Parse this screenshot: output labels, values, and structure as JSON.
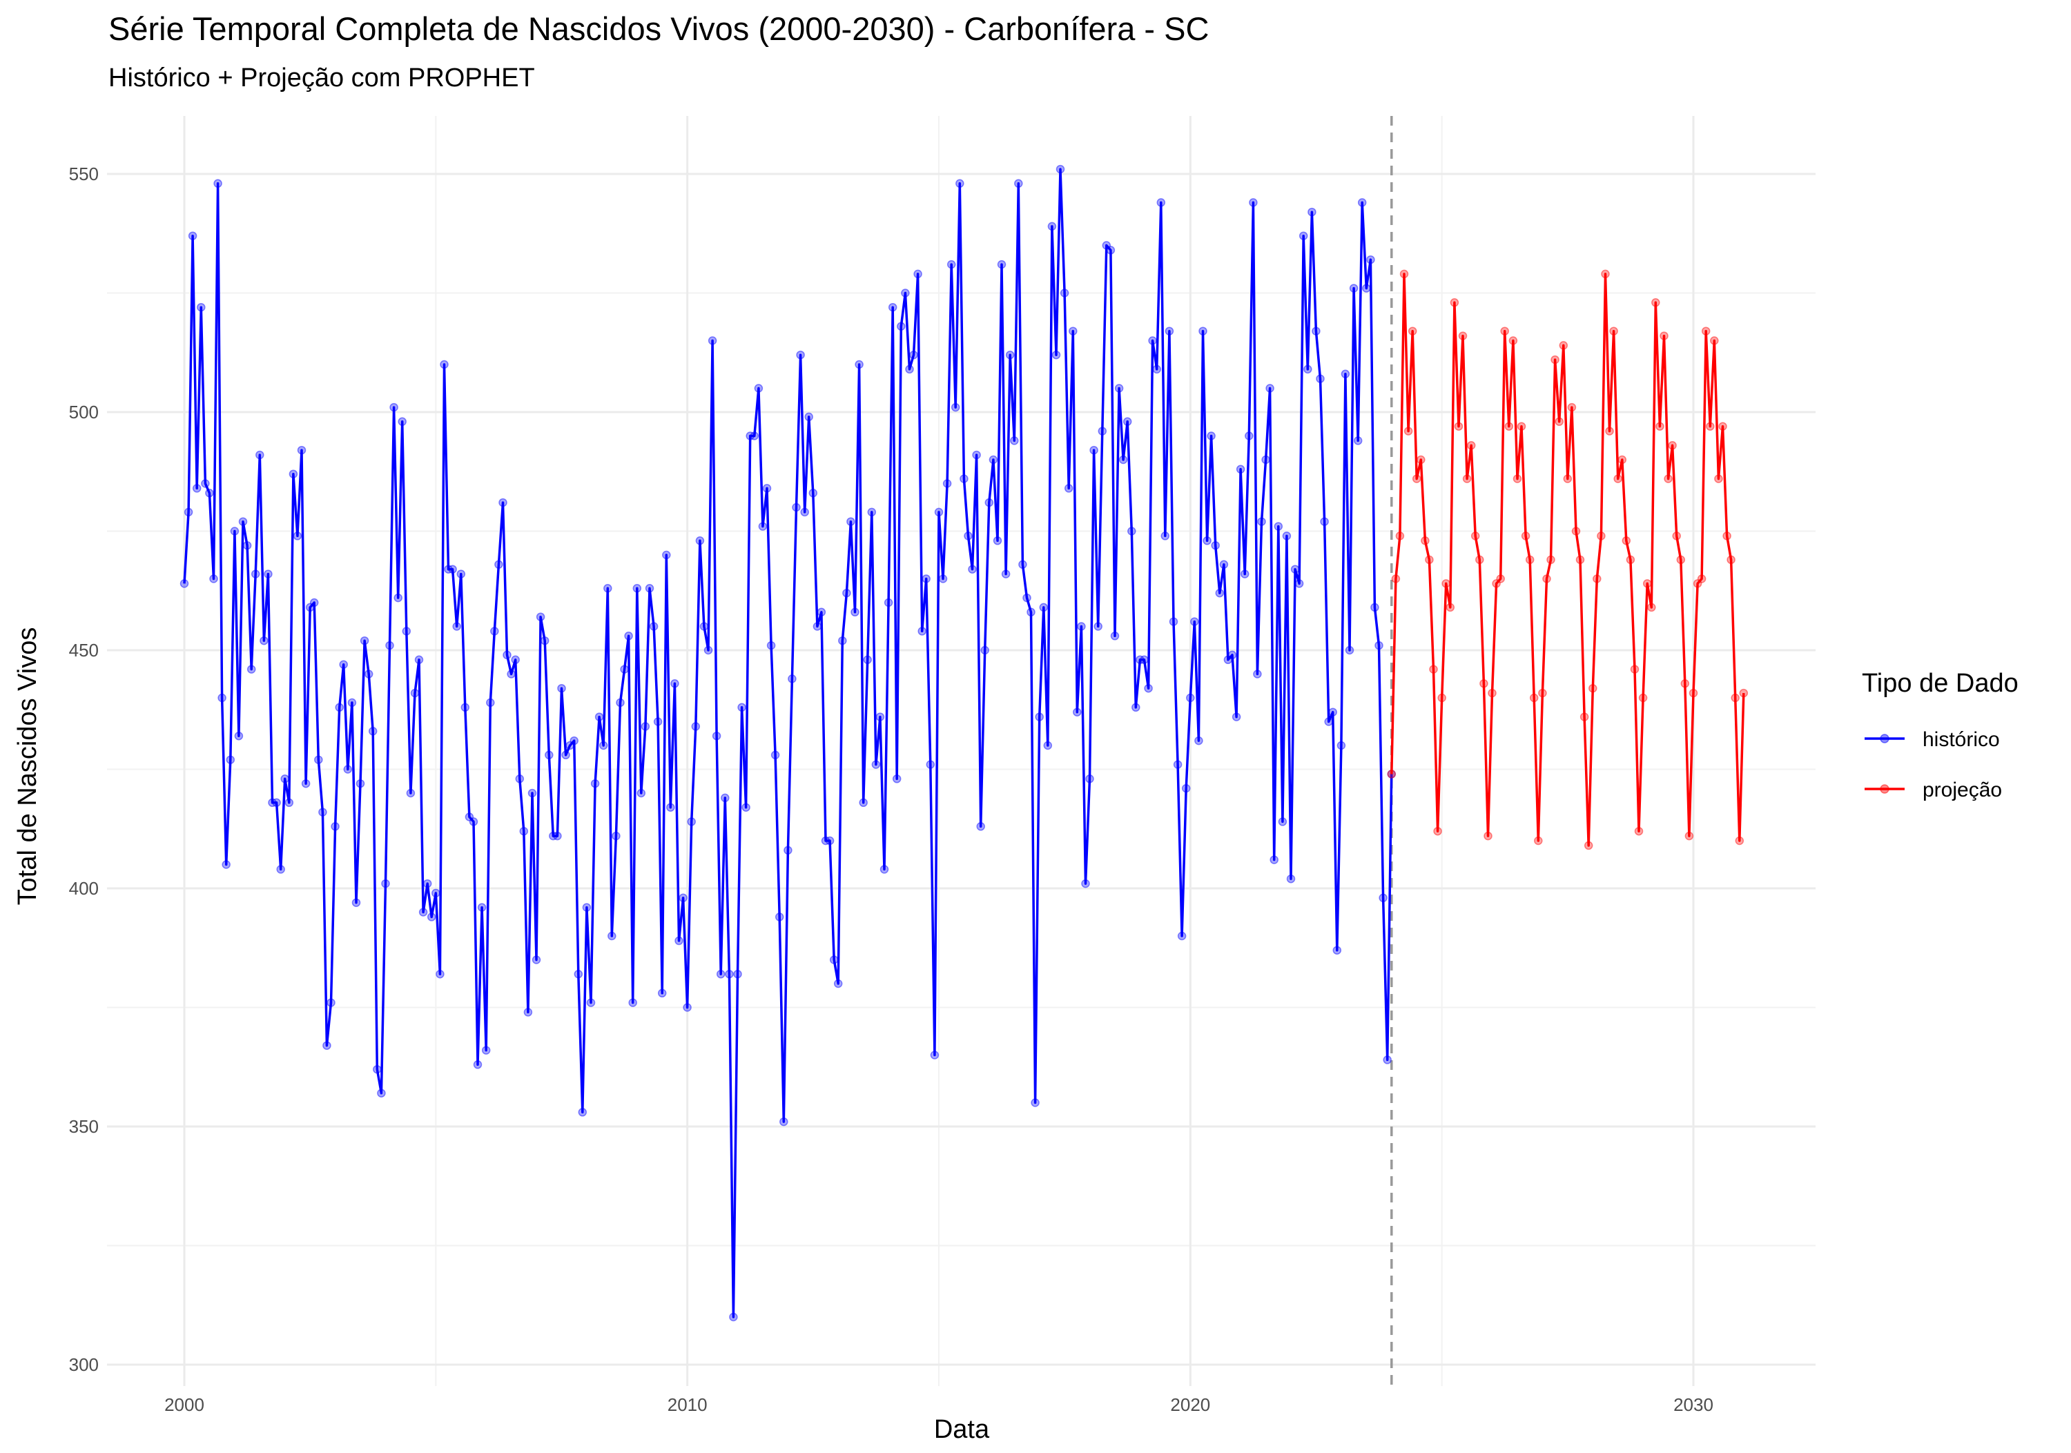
{
  "chart_data": {
    "type": "line",
    "title": "Série Temporal Completa de Nascidos Vivos (2000-2030) -  Carbonífera - SC",
    "subtitle": "Histórico + Projeção com PROPHET",
    "xlabel": "Data",
    "ylabel": "Total de Nascidos Vivos",
    "xlim": [
      1998.5,
      2032.3
    ],
    "ylim": [
      298,
      562
    ],
    "x_ticks": [
      2000,
      2010,
      2020,
      2030
    ],
    "x_tick_labels": [
      "2000",
      "2010",
      "2020",
      "2030"
    ],
    "y_ticks": [
      300,
      350,
      400,
      450,
      500,
      550
    ],
    "y_tick_labels": [
      "300",
      "350",
      "400",
      "450",
      "500",
      "550"
    ],
    "grid": true,
    "legend": {
      "title": "Tipo de Dado",
      "position": "right",
      "entries": [
        "histórico",
        "projeção"
      ]
    },
    "vline": {
      "x": 2024.0,
      "color": "#999999",
      "style": "dashed"
    },
    "series": [
      {
        "name": "histórico",
        "color": "#0000ff",
        "x_start": 2000.0,
        "step": 0.08333,
        "values": [
          464,
          479,
          537,
          484,
          522,
          485,
          483,
          465,
          548,
          440,
          405,
          427,
          475,
          432,
          477,
          472,
          446,
          466,
          491,
          452,
          466,
          418,
          418,
          404,
          423,
          418,
          487,
          474,
          492,
          422,
          459,
          460,
          427,
          416,
          367,
          376,
          413,
          438,
          447,
          425,
          439,
          397,
          422,
          452,
          445,
          433,
          362,
          357,
          401,
          451,
          501,
          461,
          498,
          454,
          420,
          441,
          448,
          395,
          401,
          394,
          399,
          382,
          510,
          467,
          467,
          455,
          466,
          438,
          415,
          414,
          363,
          396,
          366,
          439,
          454,
          468,
          481,
          449,
          445,
          448,
          423,
          412,
          374,
          420,
          385,
          457,
          452,
          428,
          411,
          411,
          442,
          428,
          430,
          431,
          382,
          353,
          396,
          376,
          422,
          436,
          430,
          463,
          390,
          411,
          439,
          446,
          453,
          376,
          463,
          420,
          434,
          463,
          455,
          435,
          378,
          470,
          417,
          443,
          389,
          398,
          375,
          414,
          434,
          473,
          455,
          450,
          515,
          432,
          382,
          419,
          382,
          310,
          382,
          438,
          417,
          495,
          495,
          505,
          476,
          484,
          451,
          428,
          394,
          351,
          408,
          444,
          480,
          512,
          479,
          499,
          483,
          455,
          458,
          410,
          410,
          385,
          380,
          452,
          462,
          477,
          458,
          510,
          418,
          448,
          479,
          426,
          436,
          404,
          460,
          522,
          423,
          518,
          525,
          509,
          512,
          529,
          454,
          465,
          426,
          365,
          479,
          465,
          485,
          531,
          501,
          548,
          486,
          474,
          467,
          491,
          413,
          450,
          481,
          490,
          473,
          531,
          466,
          512,
          494,
          548,
          468,
          461,
          458,
          355,
          436,
          459,
          430,
          539,
          512,
          551,
          525,
          484,
          517,
          437,
          455,
          401,
          423,
          492,
          455,
          496,
          535,
          534,
          453,
          505,
          490,
          498,
          475,
          438,
          448,
          448,
          442,
          515,
          509,
          544,
          474,
          517,
          456,
          426,
          390,
          421,
          440,
          456,
          431,
          517,
          473,
          495,
          472,
          462,
          468,
          448,
          449,
          436,
          488,
          466,
          495,
          544,
          445,
          477,
          490,
          505,
          406,
          476,
          414,
          474,
          402,
          467,
          464,
          537,
          509,
          542,
          517,
          507,
          477,
          435,
          437,
          387,
          430,
          508,
          450,
          526,
          494,
          544,
          526,
          532,
          459,
          451,
          398,
          364,
          424
        ]
      },
      {
        "name": "projeção",
        "color": "#ff0000",
        "x_start": 2024.0,
        "step": 0.08333,
        "values": [
          424,
          465,
          474,
          529,
          496,
          517,
          486,
          490,
          473,
          469,
          446,
          412,
          440,
          464,
          459,
          523,
          497,
          516,
          486,
          493,
          474,
          469,
          443,
          411,
          441,
          464,
          465,
          517,
          497,
          515,
          486,
          497,
          474,
          469,
          440,
          410,
          441,
          465,
          469,
          511,
          498,
          514,
          486,
          501,
          475,
          469,
          436,
          409,
          442,
          465,
          474,
          529,
          496,
          517,
          486,
          490,
          473,
          469,
          446,
          412,
          440,
          464,
          459,
          523,
          497,
          516,
          486,
          493,
          474,
          469,
          443,
          411,
          441,
          464,
          465,
          517,
          497,
          515,
          486,
          497,
          474,
          469,
          440,
          410,
          441
        ]
      }
    ]
  }
}
